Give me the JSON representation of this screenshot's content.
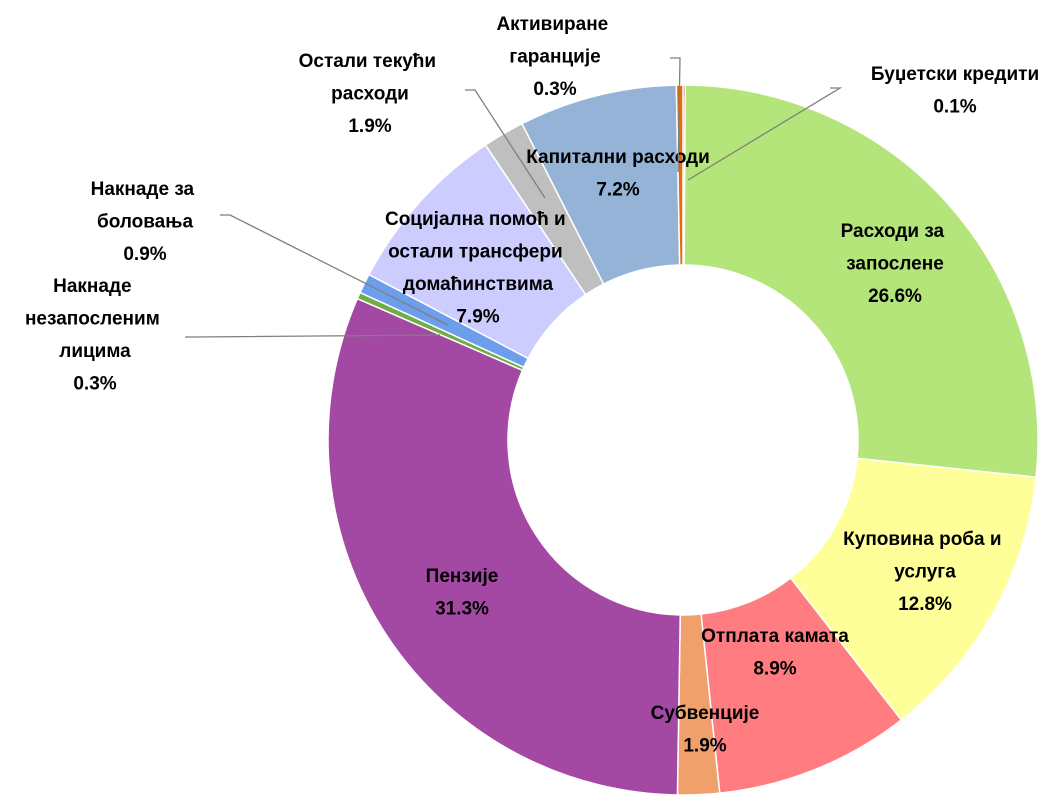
{
  "chart_data": {
    "type": "donut",
    "categories": [
      "Буџетски кредити",
      "Расходи за запослене",
      "Куповина роба и услуга",
      "Отплата камата",
      "Субвенције",
      "Пензије",
      "Накнаде незапосленим лицима",
      "Накнаде за боловања",
      "Социјална помоћ и остали трансфери домаћинствима",
      "Остали текући расходи",
      "Капитални расходи",
      "Активиране гаранције"
    ],
    "values": [
      0.1,
      26.6,
      12.8,
      8.9,
      1.9,
      31.3,
      0.3,
      0.9,
      7.9,
      1.9,
      7.2,
      0.3
    ],
    "value_labels": [
      "0.1%",
      "26.6%",
      "12.8%",
      "8.9%",
      "1.9%",
      "31.3%",
      "0.3%",
      "0.9%",
      "7.9%",
      "1.9%",
      "7.2%",
      "0.3%"
    ],
    "colors": [
      "#c0504d",
      "#b3e57a",
      "#ffff99",
      "#ff7c80",
      "#f0a06a",
      "#a349a4",
      "#70ad47",
      "#6d9eeb",
      "#ccccff",
      "#bfbfbf",
      "#95b3d7",
      "#e46c0a"
    ]
  }
}
